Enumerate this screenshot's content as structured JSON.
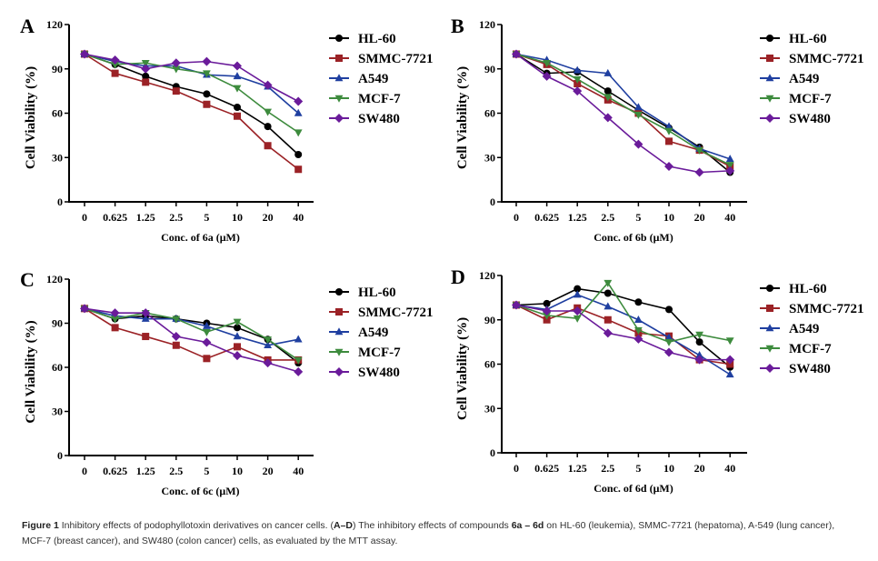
{
  "chart_data": [
    {
      "type": "line",
      "panel": "A",
      "title": "",
      "xlabel": "Conc. of 6a (μM)",
      "ylabel": "Cell Viability (%)",
      "categories": [
        "0",
        "0.625",
        "1.25",
        "2.5",
        "5",
        "10",
        "20",
        "40"
      ],
      "yticks": [
        0,
        30,
        60,
        90,
        120
      ],
      "ylim": [
        0,
        120
      ],
      "grid": false,
      "legend": "right",
      "series": [
        {
          "name": "HL-60",
          "values": [
            100,
            93,
            85,
            78,
            73,
            64,
            51,
            32
          ]
        },
        {
          "name": "SMMC-7721",
          "values": [
            100,
            87,
            81,
            75,
            66,
            58,
            38,
            22
          ]
        },
        {
          "name": "A549",
          "values": [
            100,
            95,
            92,
            92,
            86,
            85,
            78,
            60
          ]
        },
        {
          "name": "MCF-7",
          "values": [
            100,
            93,
            94,
            90,
            87,
            77,
            61,
            47
          ]
        },
        {
          "name": "SW480",
          "values": [
            100,
            96,
            90,
            94,
            95,
            92,
            79,
            68
          ]
        }
      ]
    },
    {
      "type": "line",
      "panel": "B",
      "title": "",
      "xlabel": "Conc. of 6b (μM)",
      "ylabel": "Cell Viability (%)",
      "categories": [
        "0",
        "0.625",
        "1.25",
        "2.5",
        "5",
        "10",
        "20",
        "40"
      ],
      "yticks": [
        0,
        30,
        60,
        90,
        120
      ],
      "ylim": [
        0,
        120
      ],
      "grid": false,
      "legend": "right",
      "series": [
        {
          "name": "HL-60",
          "values": [
            100,
            87,
            88,
            75,
            62,
            50,
            37,
            20
          ]
        },
        {
          "name": "SMMC-7721",
          "values": [
            100,
            93,
            80,
            69,
            60,
            41,
            35,
            24
          ]
        },
        {
          "name": "A549",
          "values": [
            100,
            96,
            89,
            87,
            64,
            51,
            36,
            29
          ]
        },
        {
          "name": "MCF-7",
          "values": [
            100,
            94,
            83,
            71,
            59,
            48,
            35,
            25
          ]
        },
        {
          "name": "SW480",
          "values": [
            100,
            85,
            75,
            57,
            39,
            24,
            20,
            21
          ]
        }
      ]
    },
    {
      "type": "line",
      "panel": "C",
      "title": "",
      "xlabel": "Conc. of 6c (μM)",
      "ylabel": "Cell Viability (%)",
      "categories": [
        "0",
        "0.625",
        "1.25",
        "2.5",
        "5",
        "10",
        "20",
        "40"
      ],
      "yticks": [
        0,
        30,
        60,
        90,
        120
      ],
      "ylim": [
        0,
        120
      ],
      "grid": false,
      "legend": "right",
      "series": [
        {
          "name": "HL-60",
          "values": [
            100,
            93,
            95,
            93,
            90,
            87,
            79,
            63
          ]
        },
        {
          "name": "SMMC-7721",
          "values": [
            100,
            87,
            81,
            75,
            66,
            74,
            65,
            65
          ]
        },
        {
          "name": "A549",
          "values": [
            100,
            95,
            93,
            93,
            88,
            81,
            75,
            79
          ]
        },
        {
          "name": "MCF-7",
          "values": [
            100,
            93,
            97,
            93,
            84,
            91,
            79,
            65
          ]
        },
        {
          "name": "SW480",
          "values": [
            100,
            97,
            97,
            81,
            77,
            68,
            63,
            57
          ]
        }
      ]
    },
    {
      "type": "line",
      "panel": "D",
      "title": "",
      "xlabel": "Conc. of 6d (μM)",
      "ylabel": "Cell Viability (%)",
      "categories": [
        "0",
        "0.625",
        "1.25",
        "2.5",
        "5",
        "10",
        "20",
        "40"
      ],
      "yticks": [
        0,
        30,
        60,
        90,
        120
      ],
      "ylim": [
        0,
        120
      ],
      "grid": false,
      "legend": "right",
      "series": [
        {
          "name": "HL-60",
          "values": [
            100,
            101,
            111,
            108,
            102,
            97,
            75,
            58
          ]
        },
        {
          "name": "SMMC-7721",
          "values": [
            100,
            90,
            98,
            90,
            81,
            79,
            63,
            60
          ]
        },
        {
          "name": "A549",
          "values": [
            100,
            97,
            107,
            99,
            90,
            78,
            66,
            53
          ]
        },
        {
          "name": "MCF-7",
          "values": [
            100,
            93,
            91,
            115,
            83,
            75,
            80,
            76
          ]
        },
        {
          "name": "SW480",
          "values": [
            100,
            96,
            96,
            81,
            77,
            68,
            63,
            63
          ]
        }
      ]
    }
  ],
  "series_style": [
    {
      "name": "HL-60",
      "color": "#000000",
      "marker": "circle"
    },
    {
      "name": "SMMC-7721",
      "color": "#9b2226",
      "marker": "square"
    },
    {
      "name": "A549",
      "color": "#1f3fa0",
      "marker": "triangle-up"
    },
    {
      "name": "MCF-7",
      "color": "#3d8b3d",
      "marker": "triangle-down"
    },
    {
      "name": "SW480",
      "color": "#6a1b9a",
      "marker": "diamond"
    }
  ],
  "caption": {
    "label": "Figure 1",
    "text1": " Inhibitory effects of podophyllotoxin derivatives on cancer cells. (",
    "range": "A–D",
    "text2": ") The inhibitory effects of compounds ",
    "c1": "6a",
    "dash": " – ",
    "c2": "6d",
    "text3": " on HL-60 (leukemia), SMMC-7721 (hepatoma), A-549 (lung cancer), MCF-7 (breast cancer), and SW480 (colon cancer) cells, as evaluated by the MTT assay."
  }
}
